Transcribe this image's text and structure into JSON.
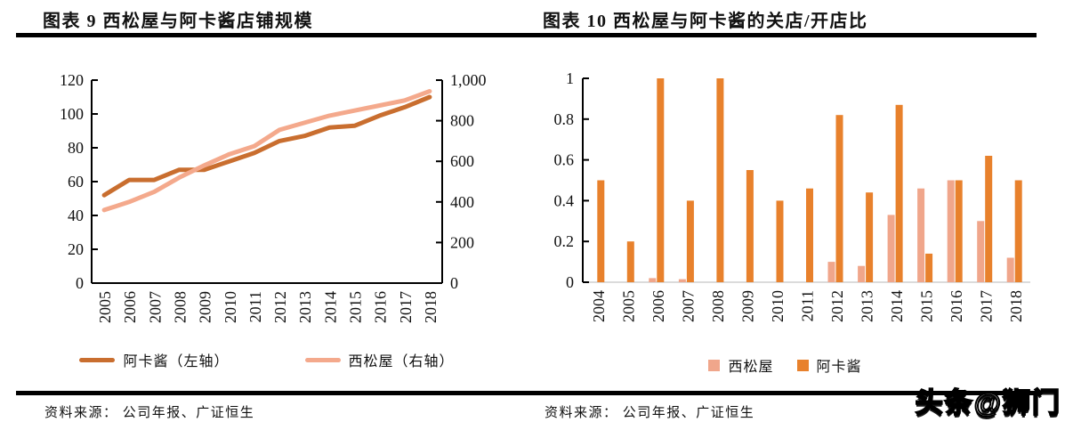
{
  "page": {
    "watermark": "头条@狮门"
  },
  "figures": [
    {
      "title": "图表 9 西松屋与阿卡酱店铺规模",
      "source": "资料来源： 公司年报、广证恒生"
    },
    {
      "title": "图表 10 西松屋与阿卡酱的关店/开店比",
      "source": "资料来源： 公司年报、广证恒生"
    }
  ],
  "chart_data": [
    {
      "type": "line",
      "title": "图表 9 西松屋与阿卡酱店铺规模",
      "categories": [
        "2005",
        "2006",
        "2007",
        "2008",
        "2009",
        "2010",
        "2011",
        "2012",
        "2013",
        "2014",
        "2015",
        "2016",
        "2017",
        "2018"
      ],
      "series": [
        {
          "name": "阿卡酱（左轴）",
          "axis": "left",
          "color": "#C96E2F",
          "values": [
            52,
            61,
            61,
            67,
            67,
            72,
            77,
            84,
            87,
            92,
            93,
            99,
            104,
            110
          ]
        },
        {
          "name": "西松屋（右轴）",
          "axis": "right",
          "color": "#F4A98C",
          "values": [
            360,
            400,
            450,
            520,
            580,
            635,
            675,
            755,
            790,
            825,
            850,
            875,
            900,
            945
          ]
        }
      ],
      "left_ylim": [
        0,
        120
      ],
      "left_ticks": [
        0,
        20,
        40,
        60,
        80,
        100,
        120
      ],
      "right_ylim": [
        0,
        1000
      ],
      "right_ticks": [
        0,
        200,
        400,
        600,
        800,
        1000
      ],
      "grid": false,
      "legend_position": "bottom"
    },
    {
      "type": "bar",
      "title": "图表 10 西松屋与阿卡酱的关店/开店比",
      "categories": [
        "2004",
        "2005",
        "2006",
        "2007",
        "2008",
        "2009",
        "2010",
        "2011",
        "2012",
        "2013",
        "2014",
        "2015",
        "2016",
        "2017",
        "2018"
      ],
      "series": [
        {
          "name": "西松屋",
          "color": "#F0A68B",
          "values": [
            0,
            0,
            0.02,
            0.015,
            0,
            0,
            0,
            0,
            0.1,
            0.08,
            0.33,
            0.46,
            0.5,
            0.3,
            0.12
          ]
        },
        {
          "name": "阿卡酱",
          "color": "#E8812C",
          "values": [
            0.5,
            0.2,
            1.0,
            0.4,
            1.0,
            0.55,
            0.4,
            0.46,
            0.82,
            0.44,
            0.87,
            0.14,
            0.5,
            0.62,
            0.5
          ]
        }
      ],
      "ylim": [
        0,
        1
      ],
      "yticks": [
        0,
        0.2,
        0.4,
        0.6,
        0.8,
        1
      ],
      "grid": false,
      "legend_position": "bottom"
    }
  ]
}
